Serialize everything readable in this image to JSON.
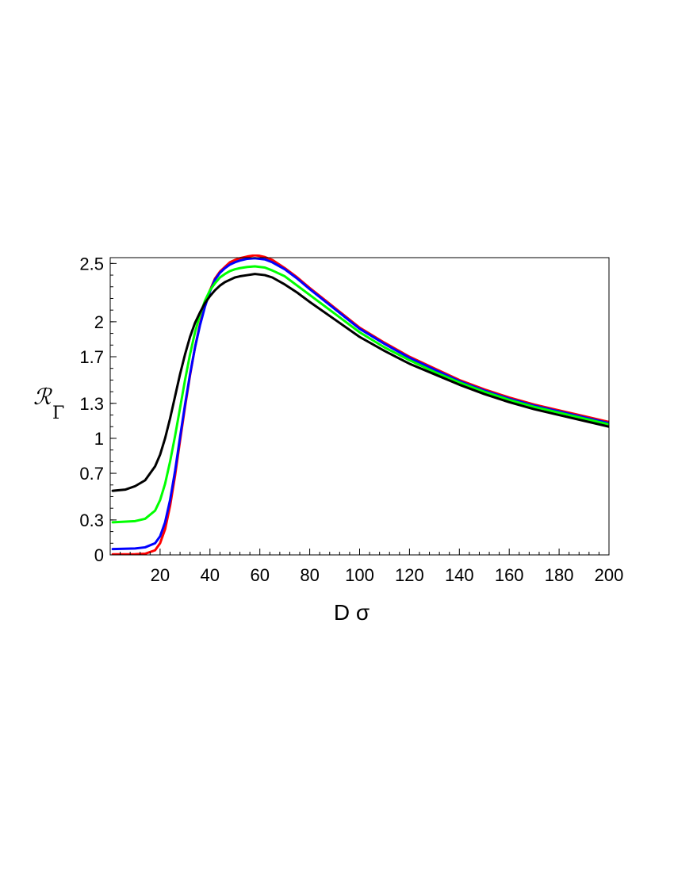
{
  "chart_data": {
    "type": "line",
    "xlabel": "D σ",
    "ylabel": {
      "main": "ℛ",
      "sub": "Γ"
    },
    "xlim": [
      0,
      200
    ],
    "ylim": [
      0,
      2.55
    ],
    "x_ticks": [
      20,
      40,
      60,
      80,
      100,
      120,
      140,
      160,
      180,
      200
    ],
    "y_ticks": [
      0,
      0.3,
      0.7,
      1,
      1.3,
      1.7,
      2,
      2.5
    ],
    "grid": false,
    "legend": "none",
    "series": [
      {
        "color": "#ff0000",
        "x": [
          1,
          10,
          14,
          18,
          20,
          22,
          24,
          26,
          28,
          30,
          32,
          34,
          36,
          38,
          40,
          42,
          44,
          46,
          48,
          50,
          52,
          55,
          58,
          60,
          62,
          65,
          70,
          75,
          80,
          90,
          100,
          110,
          120,
          130,
          140,
          150,
          160,
          170,
          180,
          190,
          200
        ],
        "y": [
          0.005,
          0.006,
          0.01,
          0.04,
          0.1,
          0.22,
          0.42,
          0.68,
          0.98,
          1.27,
          1.54,
          1.78,
          1.98,
          2.14,
          2.27,
          2.37,
          2.43,
          2.47,
          2.51,
          2.53,
          2.545,
          2.56,
          2.57,
          2.565,
          2.555,
          2.53,
          2.46,
          2.38,
          2.29,
          2.12,
          1.95,
          1.82,
          1.7,
          1.6,
          1.5,
          1.42,
          1.35,
          1.29,
          1.24,
          1.19,
          1.14
        ]
      },
      {
        "color": "#0000ff",
        "x": [
          1,
          10,
          14,
          18,
          20,
          22,
          24,
          26,
          28,
          30,
          32,
          34,
          36,
          38,
          40,
          42,
          44,
          46,
          48,
          50,
          52,
          55,
          58,
          60,
          62,
          65,
          70,
          75,
          80,
          90,
          100,
          110,
          120,
          130,
          140,
          150,
          160,
          170,
          180,
          190,
          200
        ],
        "y": [
          0.05,
          0.055,
          0.065,
          0.1,
          0.16,
          0.28,
          0.47,
          0.72,
          1.01,
          1.29,
          1.55,
          1.78,
          1.97,
          2.13,
          2.26,
          2.36,
          2.42,
          2.46,
          2.49,
          2.51,
          2.525,
          2.54,
          2.545,
          2.54,
          2.535,
          2.51,
          2.45,
          2.37,
          2.28,
          2.11,
          1.94,
          1.81,
          1.69,
          1.59,
          1.49,
          1.41,
          1.34,
          1.28,
          1.23,
          1.18,
          1.13
        ]
      },
      {
        "color": "#00ff00",
        "x": [
          1,
          10,
          14,
          18,
          20,
          22,
          24,
          26,
          28,
          30,
          32,
          34,
          36,
          38,
          40,
          42,
          44,
          46,
          48,
          50,
          52,
          55,
          58,
          60,
          62,
          65,
          70,
          75,
          80,
          90,
          100,
          110,
          120,
          130,
          140,
          150,
          160,
          170,
          180,
          190,
          200
        ],
        "y": [
          0.28,
          0.29,
          0.31,
          0.38,
          0.47,
          0.61,
          0.8,
          1.02,
          1.26,
          1.5,
          1.72,
          1.91,
          2.06,
          2.18,
          2.27,
          2.33,
          2.38,
          2.41,
          2.435,
          2.45,
          2.46,
          2.47,
          2.475,
          2.47,
          2.465,
          2.44,
          2.39,
          2.31,
          2.23,
          2.07,
          1.91,
          1.78,
          1.67,
          1.57,
          1.48,
          1.4,
          1.33,
          1.27,
          1.22,
          1.17,
          1.12
        ]
      },
      {
        "color": "#000000",
        "x": [
          1,
          6,
          10,
          14,
          18,
          20,
          22,
          24,
          26,
          28,
          30,
          32,
          34,
          36,
          38,
          40,
          42,
          44,
          46,
          48,
          50,
          52,
          55,
          58,
          60,
          62,
          65,
          70,
          75,
          80,
          90,
          100,
          110,
          120,
          130,
          140,
          150,
          160,
          170,
          180,
          190,
          200
        ],
        "y": [
          0.55,
          0.56,
          0.59,
          0.64,
          0.76,
          0.86,
          1.0,
          1.17,
          1.36,
          1.55,
          1.72,
          1.87,
          1.99,
          2.08,
          2.16,
          2.22,
          2.27,
          2.31,
          2.34,
          2.36,
          2.38,
          2.39,
          2.4,
          2.41,
          2.405,
          2.4,
          2.38,
          2.32,
          2.25,
          2.17,
          2.02,
          1.87,
          1.75,
          1.64,
          1.55,
          1.46,
          1.38,
          1.31,
          1.25,
          1.2,
          1.15,
          1.1
        ]
      }
    ]
  }
}
